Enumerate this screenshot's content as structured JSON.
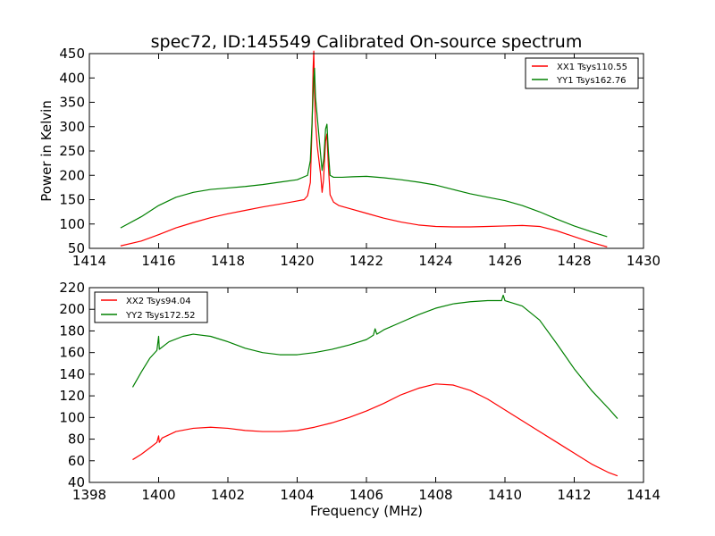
{
  "figure_title": "spec72, ID:145549 Calibrated On-source spectrum",
  "chart_data": [
    {
      "type": "line",
      "title": "spec72, ID:145549 Calibrated On-source spectrum",
      "xlabel": "",
      "ylabel": "Power in Kelvin",
      "xlim": [
        1414,
        1430
      ],
      "ylim": [
        50,
        450
      ],
      "xticks": [
        "1414",
        "1416",
        "1418",
        "1420",
        "1422",
        "1424",
        "1426",
        "1428",
        "1430"
      ],
      "yticks": [
        "50",
        "100",
        "150",
        "200",
        "250",
        "300",
        "350",
        "400",
        "450"
      ],
      "legend": "top-right",
      "series": [
        {
          "name": "XX1 Tsys110.55",
          "color": "#ff0000",
          "x": [
            1414.9,
            1415.5,
            1416.0,
            1416.5,
            1417.0,
            1417.5,
            1418.0,
            1418.5,
            1419.0,
            1419.5,
            1419.9,
            1420.2,
            1420.3,
            1420.38,
            1420.43,
            1420.46,
            1420.48,
            1420.5,
            1420.53,
            1420.58,
            1420.63,
            1420.68,
            1420.72,
            1420.76,
            1420.82,
            1420.86,
            1420.9,
            1420.95,
            1421.05,
            1421.2,
            1421.5,
            1422.0,
            1422.5,
            1423.0,
            1423.5,
            1424.0,
            1424.5,
            1425.0,
            1425.5,
            1426.0,
            1426.5,
            1427.0,
            1427.5,
            1428.0,
            1428.5,
            1428.95
          ],
          "values": [
            55,
            65,
            78,
            92,
            103,
            113,
            121,
            128,
            135,
            141,
            146,
            150,
            158,
            185,
            300,
            420,
            455,
            370,
            310,
            260,
            230,
            200,
            165,
            190,
            270,
            285,
            220,
            160,
            145,
            138,
            132,
            122,
            112,
            104,
            98,
            95,
            94,
            94,
            95,
            96,
            97,
            95,
            86,
            74,
            62,
            53
          ]
        },
        {
          "name": "YY1 Tsys162.76",
          "color": "#008000",
          "x": [
            1414.9,
            1415.5,
            1416.0,
            1416.5,
            1417.0,
            1417.5,
            1418.0,
            1418.5,
            1419.0,
            1419.5,
            1420.0,
            1420.3,
            1420.38,
            1420.43,
            1420.47,
            1420.5,
            1420.53,
            1420.58,
            1420.63,
            1420.68,
            1420.72,
            1420.77,
            1420.82,
            1420.86,
            1420.9,
            1420.95,
            1421.05,
            1421.3,
            1421.6,
            1422.0,
            1422.5,
            1423.0,
            1423.5,
            1424.0,
            1424.5,
            1425.0,
            1425.5,
            1426.0,
            1426.5,
            1427.0,
            1427.5,
            1428.0,
            1428.5,
            1428.95
          ],
          "values": [
            92,
            115,
            138,
            155,
            165,
            171,
            174,
            177,
            181,
            186,
            191,
            200,
            230,
            310,
            390,
            420,
            360,
            320,
            280,
            240,
            210,
            235,
            295,
            305,
            250,
            200,
            196,
            196,
            197,
            198,
            195,
            191,
            186,
            180,
            171,
            162,
            155,
            148,
            138,
            125,
            110,
            96,
            84,
            74
          ]
        }
      ]
    },
    {
      "type": "line",
      "title": "",
      "xlabel": "Frequency (MHz)",
      "ylabel": "",
      "xlim": [
        1398,
        1414
      ],
      "ylim": [
        40,
        220
      ],
      "xticks": [
        "1398",
        "1400",
        "1402",
        "1404",
        "1406",
        "1408",
        "1410",
        "1412",
        "1414"
      ],
      "yticks": [
        "40",
        "60",
        "80",
        "100",
        "120",
        "140",
        "160",
        "180",
        "200",
        "220"
      ],
      "legend": "top-left",
      "series": [
        {
          "name": "XX2 Tsys94.04",
          "color": "#ff0000",
          "x": [
            1399.25,
            1399.5,
            1399.75,
            1399.95,
            1400.0,
            1400.02,
            1400.1,
            1400.5,
            1401.0,
            1401.5,
            1402.0,
            1402.5,
            1403.0,
            1403.5,
            1404.0,
            1404.5,
            1405.0,
            1405.5,
            1406.0,
            1406.5,
            1407.0,
            1407.5,
            1408.0,
            1408.5,
            1409.0,
            1409.5,
            1410.0,
            1410.5,
            1411.0,
            1411.5,
            1412.0,
            1412.5,
            1413.0,
            1413.25
          ],
          "values": [
            61,
            66,
            72,
            77,
            83,
            77,
            81,
            87,
            90,
            91,
            90,
            88,
            87,
            87,
            88,
            91,
            95,
            100,
            106,
            113,
            121,
            127,
            131,
            130,
            125,
            117,
            107,
            97,
            87,
            77,
            67,
            57,
            49,
            46
          ]
        },
        {
          "name": "YY2 Tsys172.52",
          "color": "#008000",
          "x": [
            1399.25,
            1399.5,
            1399.75,
            1399.95,
            1400.0,
            1400.02,
            1400.3,
            1400.7,
            1401.0,
            1401.5,
            1402.0,
            1402.5,
            1403.0,
            1403.5,
            1404.0,
            1404.5,
            1405.0,
            1405.5,
            1406.0,
            1406.2,
            1406.25,
            1406.3,
            1406.5,
            1407.0,
            1407.5,
            1408.0,
            1408.5,
            1409.0,
            1409.5,
            1409.9,
            1409.95,
            1410.0,
            1410.5,
            1411.0,
            1411.5,
            1412.0,
            1412.5,
            1413.0,
            1413.25
          ],
          "values": [
            128,
            142,
            155,
            162,
            175,
            163,
            170,
            175,
            177,
            175,
            170,
            164,
            160,
            158,
            158,
            160,
            163,
            167,
            172,
            176,
            182,
            177,
            181,
            188,
            195,
            201,
            205,
            207,
            208,
            208,
            213,
            208,
            203,
            190,
            168,
            145,
            125,
            108,
            99
          ]
        }
      ]
    }
  ]
}
